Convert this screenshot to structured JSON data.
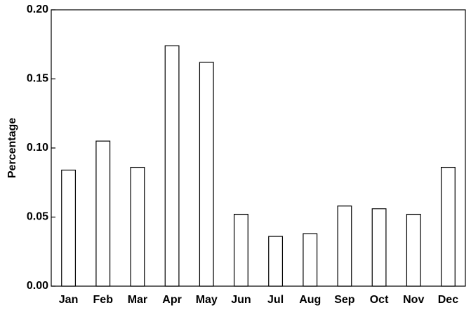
{
  "chart_data": {
    "type": "bar",
    "ylabel": "Percentage",
    "categories": [
      "Jan",
      "Feb",
      "Mar",
      "Apr",
      "May",
      "Jun",
      "Jul",
      "Aug",
      "Sep",
      "Oct",
      "Nov",
      "Dec"
    ],
    "values": [
      0.084,
      0.105,
      0.086,
      0.174,
      0.162,
      0.052,
      0.036,
      0.038,
      0.058,
      0.056,
      0.052,
      0.086
    ],
    "color": "#ffffff",
    "ylim": [
      0,
      0.2
    ],
    "yticks": [
      {
        "value": 0,
        "label": "0.00"
      },
      {
        "value": 0.05,
        "label": "0.05"
      },
      {
        "value": 0.1,
        "label": "0.10"
      },
      {
        "value": 0.15,
        "label": "0.15"
      },
      {
        "value": 0.2,
        "label": "0.20"
      }
    ],
    "grid": false
  }
}
